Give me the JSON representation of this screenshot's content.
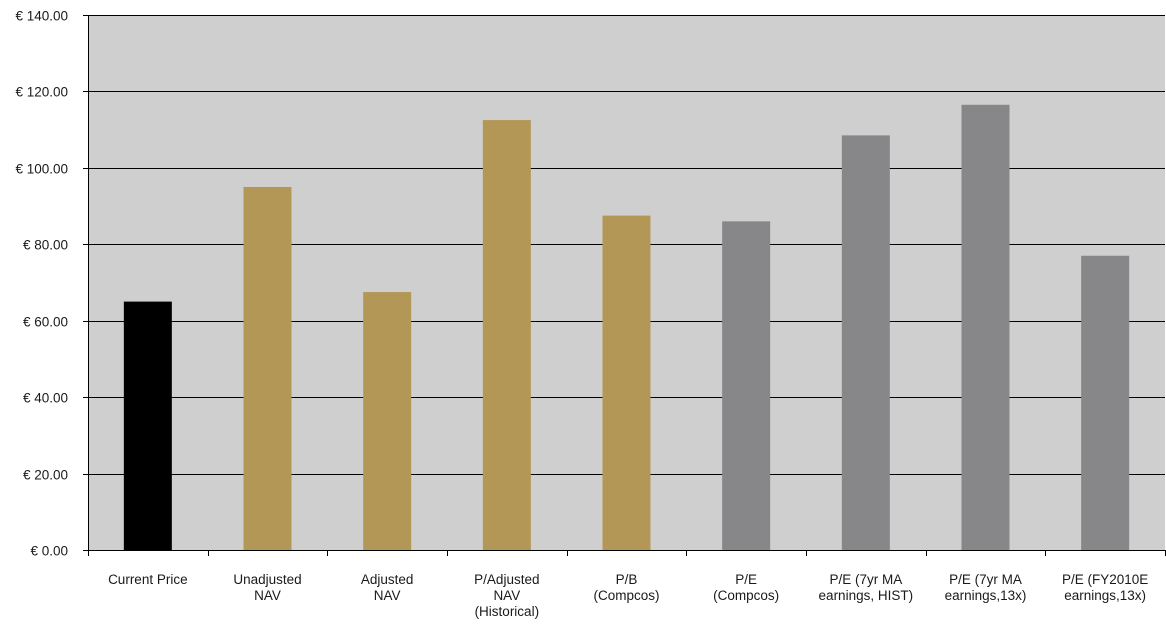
{
  "chart_data": {
    "type": "bar",
    "title": "",
    "xlabel": "",
    "ylabel": "",
    "ylim": [
      0,
      140
    ],
    "y_ticks": [
      0,
      20,
      40,
      60,
      80,
      100,
      120,
      140
    ],
    "y_tick_labels": [
      "€ 0.00",
      "€ 20.00",
      "€ 40.00",
      "€ 60.00",
      "€ 80.00",
      "€ 100.00",
      "€ 120.00",
      "€ 140.00"
    ],
    "grid": true,
    "plot_background": "#cfcfcf",
    "categories": [
      [
        "Current Price"
      ],
      [
        "Unadjusted",
        "NAV"
      ],
      [
        "Adjusted",
        "NAV"
      ],
      [
        "P/Adjusted",
        "NAV",
        "(Historical)"
      ],
      [
        "P/B",
        "(Compcos)"
      ],
      [
        "P/E",
        "(Compcos)"
      ],
      [
        "P/E (7yr MA",
        "earnings, HIST)"
      ],
      [
        "P/E (7yr MA",
        "earnings,13x)"
      ],
      [
        "P/E (FY2010E",
        "earnings,13x)"
      ]
    ],
    "values": [
      65,
      95,
      67.5,
      112.5,
      87.5,
      86,
      108.5,
      116.5,
      77
    ],
    "colors": [
      "#000000",
      "#b39757",
      "#b39757",
      "#b39757",
      "#b39757",
      "#87878a",
      "#87878a",
      "#87878a",
      "#87878a"
    ]
  }
}
